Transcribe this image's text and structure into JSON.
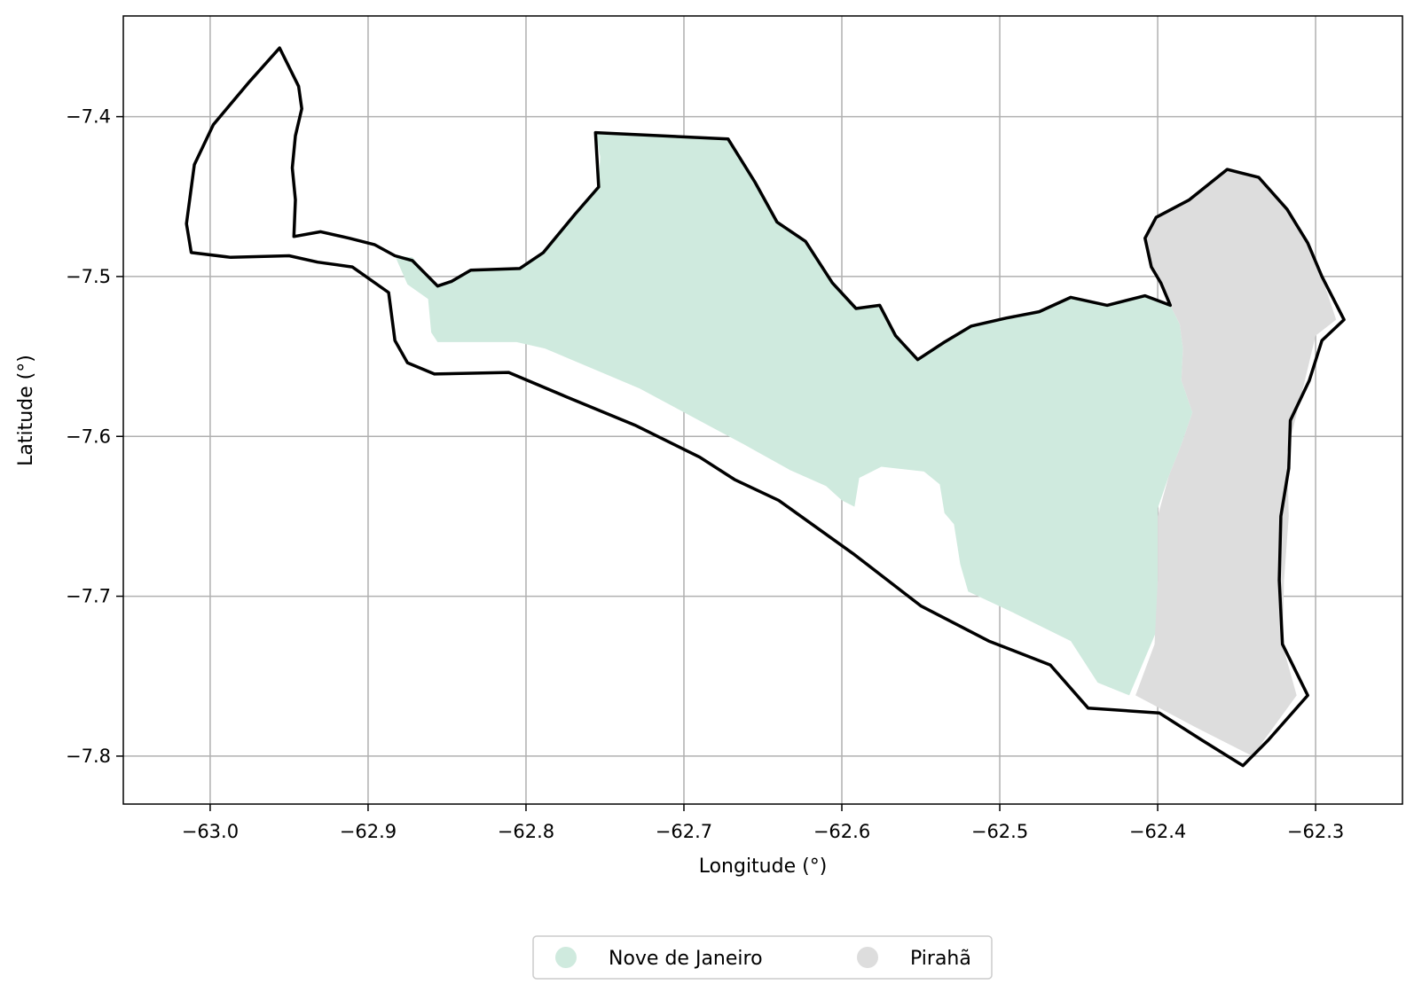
{
  "chart_data": {
    "type": "map",
    "xlabel": "Longitude (°)",
    "ylabel": "Latitude (°)",
    "xlim": [
      -63.055,
      -62.245
    ],
    "ylim": [
      -7.83,
      -7.337
    ],
    "grid": true,
    "legend_position": "bottom-center",
    "x_ticks": [
      {
        "value": -63.0,
        "label": "−63.0"
      },
      {
        "value": -62.9,
        "label": "−62.9"
      },
      {
        "value": -62.8,
        "label": "−62.8"
      },
      {
        "value": -62.7,
        "label": "−62.7"
      },
      {
        "value": -62.6,
        "label": "−62.6"
      },
      {
        "value": -62.5,
        "label": "−62.5"
      },
      {
        "value": -62.4,
        "label": "−62.4"
      },
      {
        "value": -62.3,
        "label": "−62.3"
      }
    ],
    "y_ticks": [
      {
        "value": -7.4,
        "label": "−7.4"
      },
      {
        "value": -7.5,
        "label": "−7.5"
      },
      {
        "value": -7.6,
        "label": "−7.6"
      },
      {
        "value": -7.7,
        "label": "−7.7"
      },
      {
        "value": -7.8,
        "label": "−7.8"
      }
    ],
    "series": [
      {
        "name": "Nove de Janeiro",
        "color": "#cfeade",
        "polygon": [
          [
            -62.756,
            -7.41
          ],
          [
            -62.672,
            -7.414
          ],
          [
            -62.655,
            -7.441
          ],
          [
            -62.641,
            -7.466
          ],
          [
            -62.623,
            -7.478
          ],
          [
            -62.606,
            -7.504
          ],
          [
            -62.591,
            -7.52
          ],
          [
            -62.576,
            -7.518
          ],
          [
            -62.566,
            -7.537
          ],
          [
            -62.552,
            -7.552
          ],
          [
            -62.535,
            -7.541
          ],
          [
            -62.518,
            -7.531
          ],
          [
            -62.496,
            -7.526
          ],
          [
            -62.475,
            -7.522
          ],
          [
            -62.455,
            -7.513
          ],
          [
            -62.432,
            -7.518
          ],
          [
            -62.408,
            -7.512
          ],
          [
            -62.392,
            -7.518
          ],
          [
            -62.386,
            -7.53
          ],
          [
            -62.384,
            -7.545
          ],
          [
            -62.385,
            -7.565
          ],
          [
            -62.378,
            -7.585
          ],
          [
            -62.385,
            -7.605
          ],
          [
            -62.393,
            -7.625
          ],
          [
            -62.4,
            -7.645
          ],
          [
            -62.4,
            -7.68
          ],
          [
            -62.4,
            -7.72
          ],
          [
            -62.418,
            -7.762
          ],
          [
            -62.438,
            -7.754
          ],
          [
            -62.455,
            -7.728
          ],
          [
            -62.492,
            -7.71
          ],
          [
            -62.52,
            -7.697
          ],
          [
            -62.525,
            -7.68
          ],
          [
            -62.529,
            -7.655
          ],
          [
            -62.535,
            -7.648
          ],
          [
            -62.538,
            -7.63
          ],
          [
            -62.548,
            -7.622
          ],
          [
            -62.575,
            -7.619
          ],
          [
            -62.589,
            -7.626
          ],
          [
            -62.592,
            -7.644
          ],
          [
            -62.6,
            -7.64
          ],
          [
            -62.61,
            -7.631
          ],
          [
            -62.633,
            -7.621
          ],
          [
            -62.662,
            -7.605
          ],
          [
            -62.683,
            -7.594
          ],
          [
            -62.728,
            -7.57
          ],
          [
            -62.788,
            -7.545
          ],
          [
            -62.806,
            -7.541
          ],
          [
            -62.856,
            -7.541
          ],
          [
            -62.86,
            -7.535
          ],
          [
            -62.862,
            -7.514
          ],
          [
            -62.875,
            -7.505
          ],
          [
            -62.883,
            -7.487
          ],
          [
            -62.872,
            -7.488
          ],
          [
            -62.856,
            -7.506
          ],
          [
            -62.847,
            -7.503
          ],
          [
            -62.835,
            -7.496
          ],
          [
            -62.804,
            -7.495
          ],
          [
            -62.789,
            -7.485
          ],
          [
            -62.769,
            -7.461
          ],
          [
            -62.754,
            -7.444
          ],
          [
            -62.753,
            -7.425
          ]
        ]
      },
      {
        "name": "Pirahã",
        "color": "#dddddd",
        "polygon": [
          [
            -62.356,
            -7.433
          ],
          [
            -62.336,
            -7.438
          ],
          [
            -62.318,
            -7.458
          ],
          [
            -62.305,
            -7.479
          ],
          [
            -62.296,
            -7.5
          ],
          [
            -62.287,
            -7.527
          ],
          [
            -62.3,
            -7.537
          ],
          [
            -62.308,
            -7.57
          ],
          [
            -62.318,
            -7.61
          ],
          [
            -62.317,
            -7.65
          ],
          [
            -62.32,
            -7.69
          ],
          [
            -62.321,
            -7.73
          ],
          [
            -62.312,
            -7.762
          ],
          [
            -62.34,
            -7.8
          ],
          [
            -62.376,
            -7.782
          ],
          [
            -62.414,
            -7.762
          ],
          [
            -62.402,
            -7.73
          ],
          [
            -62.4,
            -7.69
          ],
          [
            -62.4,
            -7.65
          ],
          [
            -62.393,
            -7.625
          ],
          [
            -62.385,
            -7.605
          ],
          [
            -62.378,
            -7.585
          ],
          [
            -62.385,
            -7.565
          ],
          [
            -62.384,
            -7.545
          ],
          [
            -62.386,
            -7.53
          ],
          [
            -62.392,
            -7.518
          ],
          [
            -62.398,
            -7.504
          ],
          [
            -62.404,
            -7.494
          ],
          [
            -62.408,
            -7.476
          ],
          [
            -62.401,
            -7.463
          ],
          [
            -62.38,
            -7.452
          ]
        ]
      }
    ],
    "outline": {
      "color": "#000000",
      "polygon": [
        [
          -62.956,
          -7.357
        ],
        [
          -62.944,
          -7.381
        ],
        [
          -62.942,
          -7.395
        ],
        [
          -62.946,
          -7.412
        ],
        [
          -62.948,
          -7.432
        ],
        [
          -62.946,
          -7.452
        ],
        [
          -62.947,
          -7.475
        ],
        [
          -62.93,
          -7.472
        ],
        [
          -62.912,
          -7.476
        ],
        [
          -62.896,
          -7.48
        ],
        [
          -62.883,
          -7.487
        ],
        [
          -62.872,
          -7.49
        ],
        [
          -62.856,
          -7.506
        ],
        [
          -62.847,
          -7.503
        ],
        [
          -62.835,
          -7.496
        ],
        [
          -62.804,
          -7.495
        ],
        [
          -62.789,
          -7.485
        ],
        [
          -62.769,
          -7.461
        ],
        [
          -62.754,
          -7.444
        ],
        [
          -62.756,
          -7.41
        ],
        [
          -62.672,
          -7.414
        ],
        [
          -62.655,
          -7.441
        ],
        [
          -62.641,
          -7.466
        ],
        [
          -62.623,
          -7.478
        ],
        [
          -62.606,
          -7.504
        ],
        [
          -62.591,
          -7.52
        ],
        [
          -62.576,
          -7.518
        ],
        [
          -62.566,
          -7.537
        ],
        [
          -62.552,
          -7.552
        ],
        [
          -62.535,
          -7.541
        ],
        [
          -62.518,
          -7.531
        ],
        [
          -62.496,
          -7.526
        ],
        [
          -62.475,
          -7.522
        ],
        [
          -62.455,
          -7.513
        ],
        [
          -62.432,
          -7.518
        ],
        [
          -62.408,
          -7.512
        ],
        [
          -62.392,
          -7.518
        ],
        [
          -62.398,
          -7.504
        ],
        [
          -62.404,
          -7.494
        ],
        [
          -62.408,
          -7.476
        ],
        [
          -62.401,
          -7.463
        ],
        [
          -62.38,
          -7.452
        ],
        [
          -62.356,
          -7.433
        ],
        [
          -62.336,
          -7.438
        ],
        [
          -62.318,
          -7.458
        ],
        [
          -62.305,
          -7.479
        ],
        [
          -62.296,
          -7.5
        ],
        [
          -62.282,
          -7.527
        ],
        [
          -62.296,
          -7.54
        ],
        [
          -62.304,
          -7.565
        ],
        [
          -62.316,
          -7.59
        ],
        [
          -62.317,
          -7.62
        ],
        [
          -62.322,
          -7.65
        ],
        [
          -62.323,
          -7.69
        ],
        [
          -62.321,
          -7.73
        ],
        [
          -62.305,
          -7.762
        ],
        [
          -62.33,
          -7.79
        ],
        [
          -62.346,
          -7.806
        ],
        [
          -62.372,
          -7.79
        ],
        [
          -62.399,
          -7.773
        ],
        [
          -62.444,
          -7.77
        ],
        [
          -62.468,
          -7.743
        ],
        [
          -62.507,
          -7.728
        ],
        [
          -62.55,
          -7.706
        ],
        [
          -62.592,
          -7.674
        ],
        [
          -62.64,
          -7.64
        ],
        [
          -62.668,
          -7.627
        ],
        [
          -62.69,
          -7.613
        ],
        [
          -62.731,
          -7.593
        ],
        [
          -62.775,
          -7.575
        ],
        [
          -62.811,
          -7.56
        ],
        [
          -62.858,
          -7.561
        ],
        [
          -62.875,
          -7.554
        ],
        [
          -62.883,
          -7.54
        ],
        [
          -62.887,
          -7.51
        ],
        [
          -62.91,
          -7.494
        ],
        [
          -62.932,
          -7.491
        ],
        [
          -62.95,
          -7.487
        ],
        [
          -62.987,
          -7.488
        ],
        [
          -63.012,
          -7.485
        ],
        [
          -63.015,
          -7.467
        ],
        [
          -63.01,
          -7.43
        ],
        [
          -62.998,
          -7.405
        ],
        [
          -62.975,
          -7.378
        ]
      ]
    }
  },
  "legend": {
    "items": [
      {
        "label": "Nove de Janeiro",
        "color": "#cfeade"
      },
      {
        "label": "Pirahã",
        "color": "#dddddd"
      }
    ]
  }
}
